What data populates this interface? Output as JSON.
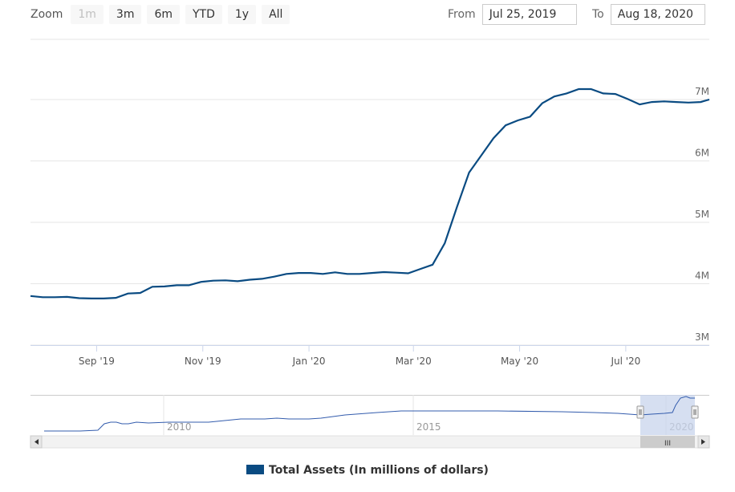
{
  "toolbar": {
    "zoom_label": "Zoom",
    "buttons": [
      "1m",
      "3m",
      "6m",
      "YTD",
      "1y",
      "All"
    ],
    "from_label": "From",
    "from_value": "Jul 25, 2019",
    "to_label": "To",
    "to_value": "Aug 18, 2020"
  },
  "colors": {
    "series": "#0a4b82",
    "navigator_mask": "#c8d4ec",
    "grid": "#e6e6e6"
  },
  "chart_data": {
    "type": "line",
    "x_ticks": [
      "Sep '19",
      "Nov '19",
      "Jan '20",
      "Mar '20",
      "May '20",
      "Jul '20"
    ],
    "y_ticks": [
      "3M",
      "4M",
      "5M",
      "6M",
      "7M"
    ],
    "ylim": [
      3000000,
      8000000
    ],
    "grid": true,
    "legend_placement": "bottom",
    "series": [
      {
        "name": "Total Assets (In millions of dollars)",
        "x": [
          "2019-07-25",
          "2019-08-01",
          "2019-08-08",
          "2019-08-15",
          "2019-08-22",
          "2019-08-29",
          "2019-09-05",
          "2019-09-12",
          "2019-09-19",
          "2019-09-26",
          "2019-10-03",
          "2019-10-10",
          "2019-10-17",
          "2019-10-24",
          "2019-10-31",
          "2019-11-07",
          "2019-11-14",
          "2019-11-21",
          "2019-11-28",
          "2019-12-05",
          "2019-12-12",
          "2019-12-19",
          "2019-12-26",
          "2020-01-02",
          "2020-01-09",
          "2020-01-16",
          "2020-01-23",
          "2020-01-30",
          "2020-02-06",
          "2020-02-13",
          "2020-02-20",
          "2020-02-27",
          "2020-03-05",
          "2020-03-12",
          "2020-03-19",
          "2020-03-26",
          "2020-04-02",
          "2020-04-09",
          "2020-04-16",
          "2020-04-23",
          "2020-04-30",
          "2020-05-07",
          "2020-05-14",
          "2020-05-21",
          "2020-05-28",
          "2020-06-04",
          "2020-06-11",
          "2020-06-18",
          "2020-06-25",
          "2020-07-02",
          "2020-07-09",
          "2020-07-16",
          "2020-07-23",
          "2020-07-30",
          "2020-08-06",
          "2020-08-13",
          "2020-08-18"
        ],
        "values": [
          3800000,
          3780000,
          3780000,
          3785000,
          3765000,
          3760000,
          3760000,
          3770000,
          3840000,
          3850000,
          3950000,
          3955000,
          3975000,
          3975000,
          4030000,
          4050000,
          4055000,
          4040000,
          4065000,
          4080000,
          4115000,
          4160000,
          4175000,
          4175000,
          4160000,
          4185000,
          4160000,
          4160000,
          4175000,
          4190000,
          4180000,
          4170000,
          4240000,
          4310000,
          4660000,
          5250000,
          5810000,
          6090000,
          6370000,
          6580000,
          6660000,
          6720000,
          6940000,
          7050000,
          7100000,
          7170000,
          7170000,
          7100000,
          7090000,
          7010000,
          6920000,
          6960000,
          6970000,
          6960000,
          6950000,
          6960000,
          7000000
        ]
      }
    ],
    "navigator": {
      "x_ticks": [
        "2010",
        "2015",
        "2020"
      ],
      "scrollbar_grip": "III"
    }
  }
}
